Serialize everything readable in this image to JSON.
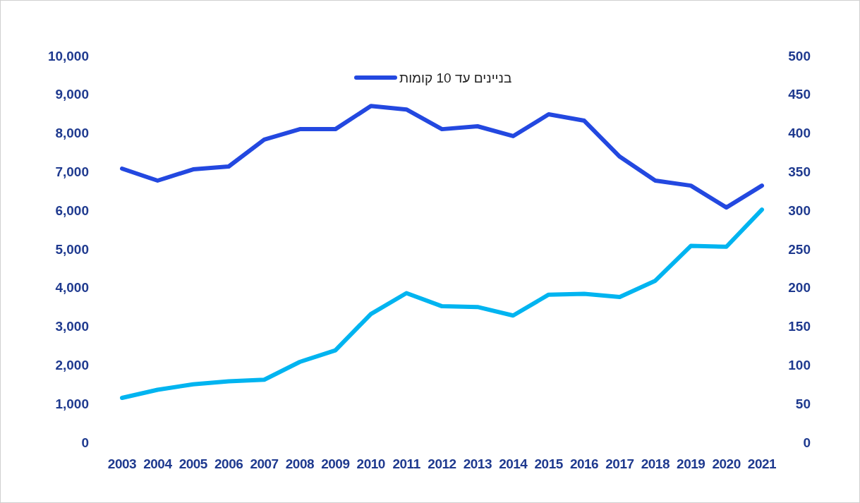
{
  "chart_data": {
    "type": "line",
    "categories": [
      "2003",
      "2004",
      "2005",
      "2006",
      "2007",
      "2008",
      "2009",
      "2010",
      "2011",
      "2012",
      "2013",
      "2014",
      "2015",
      "2016",
      "2017",
      "2018",
      "2019",
      "2020",
      "2021"
    ],
    "series": [
      {
        "name": "בניינים עד 10 קומות",
        "color": "#2348e0",
        "values": [
          7080,
          6770,
          7060,
          7135,
          7830,
          8100,
          8100,
          8700,
          8610,
          8100,
          8175,
          7920,
          8485,
          8320,
          7390,
          6770,
          6640,
          6075,
          6640
        ]
      },
      {
        "color": "#00b4f0",
        "axis": "y2",
        "values": [
          57.5,
          68,
          75,
          79,
          81,
          104,
          119,
          166,
          193,
          176,
          175,
          164,
          191,
          192,
          188,
          209,
          254,
          253,
          301
        ]
      }
    ],
    "ylim": [
      0,
      10000
    ],
    "yticks": [
      {
        "value": 0,
        "label": "0"
      },
      {
        "value": 1000,
        "label": "1,000"
      },
      {
        "value": 2000,
        "label": "2,000"
      },
      {
        "value": 3000,
        "label": "3,000"
      },
      {
        "value": 4000,
        "label": "4,000"
      },
      {
        "value": 5000,
        "label": "5,000"
      },
      {
        "value": 6000,
        "label": "6,000"
      },
      {
        "value": 7000,
        "label": "7,000"
      },
      {
        "value": 8000,
        "label": "8,000"
      },
      {
        "value": 9000,
        "label": "9,000"
      },
      {
        "value": 10000,
        "label": "10,000"
      }
    ],
    "y2lim": [
      0,
      500
    ],
    "y2ticks": [
      0,
      50,
      100,
      150,
      200,
      250,
      300,
      350,
      400,
      450,
      500
    ],
    "legend": "top",
    "grid": false,
    "marker": "none",
    "line_style": "solid"
  }
}
